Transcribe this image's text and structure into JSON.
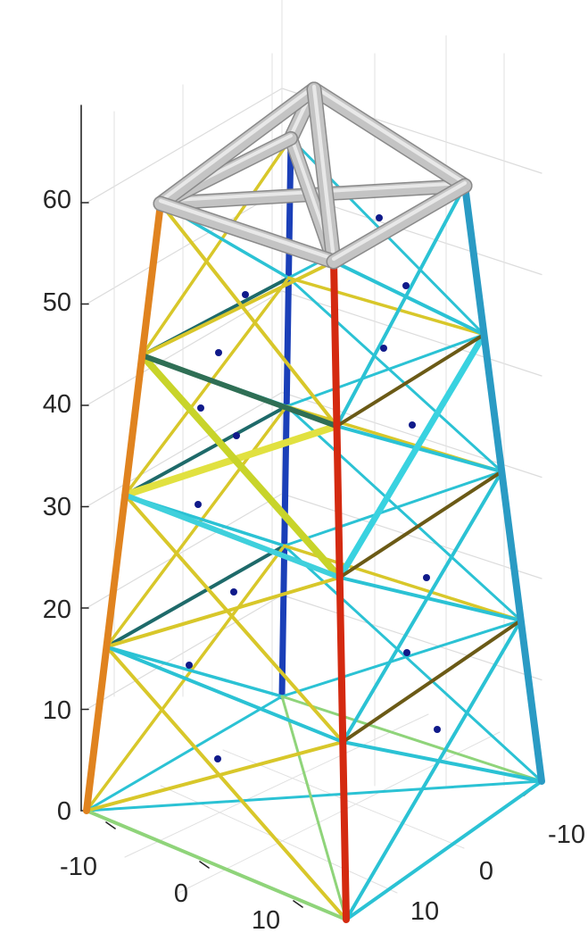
{
  "axes": {
    "z_ticks": [
      "0",
      "10",
      "20",
      "30",
      "40",
      "50",
      "60"
    ],
    "x_ticks": [
      "-10",
      "0",
      "10"
    ],
    "y_ticks": [
      "-10",
      "0",
      "10"
    ]
  },
  "colors": {
    "top_frame": "#bdbdbd",
    "red": "#d42a10",
    "orange": "#e0831f",
    "yellow": "#d8c72a",
    "cyan": "#2bc2d4",
    "blue": "#1a3fb8",
    "teal": "#1e6a6a",
    "green": "#8fd47a",
    "olive": "#6b5a16",
    "dark_blue": "#101a8a"
  }
}
